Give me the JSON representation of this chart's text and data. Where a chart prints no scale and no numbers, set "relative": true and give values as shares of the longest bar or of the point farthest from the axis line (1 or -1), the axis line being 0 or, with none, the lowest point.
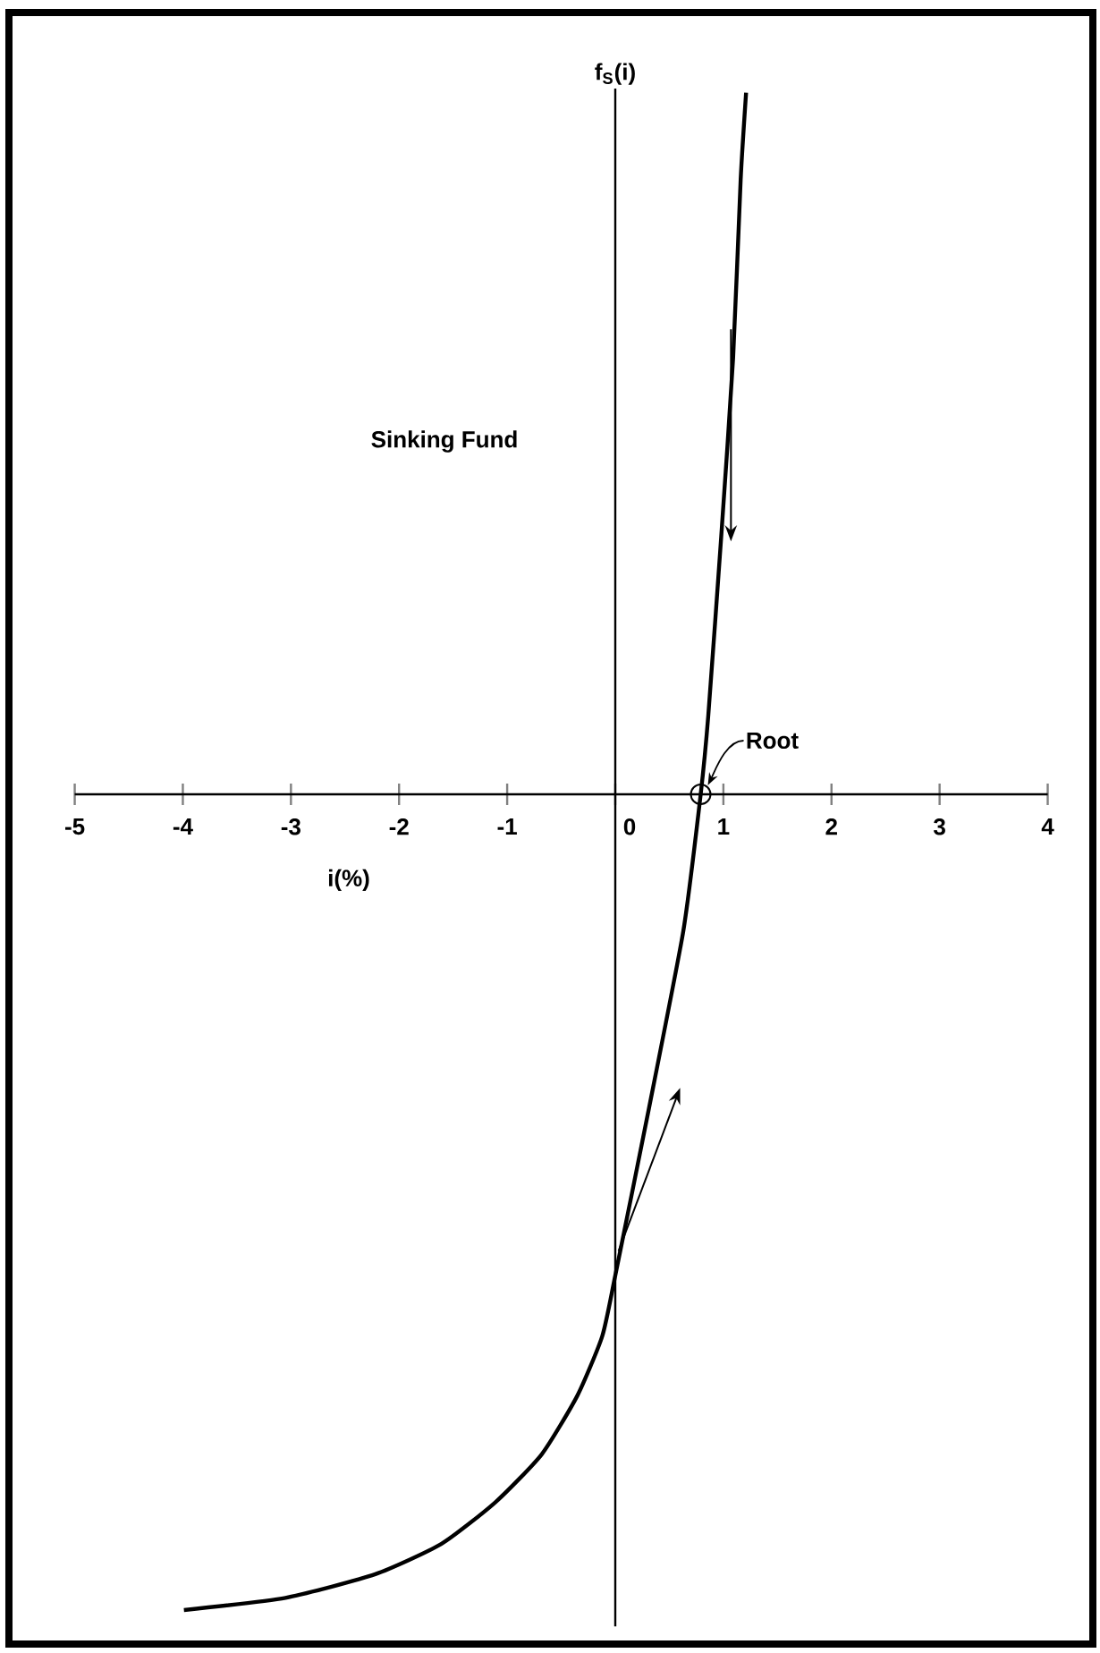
{
  "chart_data": {
    "type": "line",
    "relative": true,
    "xlabel": "i(%)",
    "ylabel": "f$_{S}$(i)",
    "annotations": [
      "Sinking Fund",
      {
        "text": "Root",
        "x": 0.79,
        "y": 0
      }
    ],
    "xlim": [
      -5,
      4
    ],
    "xticks": [
      -5,
      -4,
      -3,
      -2,
      -1,
      0,
      1,
      2,
      3,
      4
    ],
    "series": [
      {
        "color": "#000000",
        "x": [
          -3.99,
          -3.05,
          -2.22,
          -1.61,
          -1.11,
          -0.68,
          -0.35,
          -0.12,
          0,
          0.31,
          0.63,
          0.79,
          0.86,
          0.98,
          1.09,
          1.16,
          1.21
        ],
        "values": [
          -1,
          -0.985,
          -0.956,
          -0.919,
          -0.868,
          -0.809,
          -0.737,
          -0.664,
          -0.59,
          -0.386,
          -0.167,
          0,
          0.096,
          0.316,
          0.535,
          0.754,
          0.86
        ]
      }
    ]
  }
}
